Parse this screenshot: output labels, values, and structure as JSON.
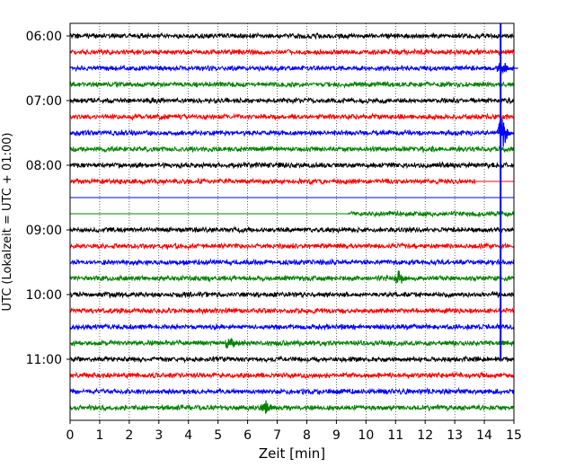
{
  "chart_data": {
    "type": "line",
    "title": "",
    "xlabel": "Zeit  [min]",
    "ylabel": "UTC (Lokalzeit = UTC + 01:00)",
    "xlim": [
      0,
      15
    ],
    "x_ticks": [
      "0",
      "1",
      "2",
      "3",
      "4",
      "5",
      "6",
      "7",
      "8",
      "9",
      "10",
      "11",
      "12",
      "13",
      "14",
      "15"
    ],
    "y_ticks": [
      "06:00",
      "07:00",
      "08:00",
      "09:00",
      "10:00",
      "11:00"
    ],
    "grid": "vertical dotted",
    "trace_colors": [
      "#000000",
      "#ff0000",
      "#0000ff",
      "#008000"
    ],
    "traces": [
      {
        "start": "06:00",
        "color": "#000000",
        "data_from_min": 0,
        "data_to_min": 15
      },
      {
        "start": "06:15",
        "color": "#ff0000",
        "data_from_min": 0,
        "data_to_min": 15
      },
      {
        "start": "06:30",
        "color": "#0000ff",
        "data_from_min": 0,
        "data_to_min": 15
      },
      {
        "start": "06:45",
        "color": "#008000",
        "data_from_min": 0,
        "data_to_min": 15
      },
      {
        "start": "07:00",
        "color": "#000000",
        "data_from_min": 0,
        "data_to_min": 15
      },
      {
        "start": "07:15",
        "color": "#ff0000",
        "data_from_min": 0,
        "data_to_min": 15
      },
      {
        "start": "07:30",
        "color": "#0000ff",
        "data_from_min": 0,
        "data_to_min": 15
      },
      {
        "start": "07:45",
        "color": "#008000",
        "data_from_min": 0,
        "data_to_min": 15
      },
      {
        "start": "08:00",
        "color": "#000000",
        "data_from_min": 0,
        "data_to_min": 15
      },
      {
        "start": "08:15",
        "color": "#ff0000",
        "data_from_min": 0,
        "data_to_min": 13.7
      },
      {
        "start": "08:30",
        "color": "#0000ff",
        "data_from_min": 15,
        "data_to_min": 15
      },
      {
        "start": "08:45",
        "color": "#008000",
        "data_from_min": 9.4,
        "data_to_min": 15
      },
      {
        "start": "09:00",
        "color": "#000000",
        "data_from_min": 0,
        "data_to_min": 15
      },
      {
        "start": "09:15",
        "color": "#ff0000",
        "data_from_min": 0,
        "data_to_min": 15
      },
      {
        "start": "09:30",
        "color": "#0000ff",
        "data_from_min": 0,
        "data_to_min": 15
      },
      {
        "start": "09:45",
        "color": "#008000",
        "data_from_min": 0,
        "data_to_min": 15
      },
      {
        "start": "10:00",
        "color": "#000000",
        "data_from_min": 0,
        "data_to_min": 15
      },
      {
        "start": "10:15",
        "color": "#ff0000",
        "data_from_min": 0,
        "data_to_min": 15
      },
      {
        "start": "10:30",
        "color": "#0000ff",
        "data_from_min": 0,
        "data_to_min": 15
      },
      {
        "start": "10:45",
        "color": "#008000",
        "data_from_min": 0,
        "data_to_min": 15
      },
      {
        "start": "11:00",
        "color": "#000000",
        "data_from_min": 0,
        "data_to_min": 15
      },
      {
        "start": "11:15",
        "color": "#ff0000",
        "data_from_min": 0,
        "data_to_min": 15
      },
      {
        "start": "11:30",
        "color": "#0000ff",
        "data_from_min": 0,
        "data_to_min": 15
      },
      {
        "start": "11:45",
        "color": "#008000",
        "data_from_min": 0,
        "data_to_min": 15
      }
    ],
    "events": [
      {
        "trace": "06:30",
        "at_min": 14.6,
        "color": "#0000ff"
      },
      {
        "trace": "07:30",
        "at_min": 14.6,
        "color": "#0000ff"
      },
      {
        "trace": "09:45",
        "at_min": 11.1,
        "color": "#008000"
      },
      {
        "trace": "10:45",
        "at_min": 5.4,
        "color": "#008000"
      },
      {
        "trace": "11:45",
        "at_min": 6.6,
        "color": "#008000"
      }
    ],
    "vertical_line": {
      "x_min": 14.55,
      "from": "06:00",
      "to": "11:00",
      "color": "#0000ff"
    }
  }
}
